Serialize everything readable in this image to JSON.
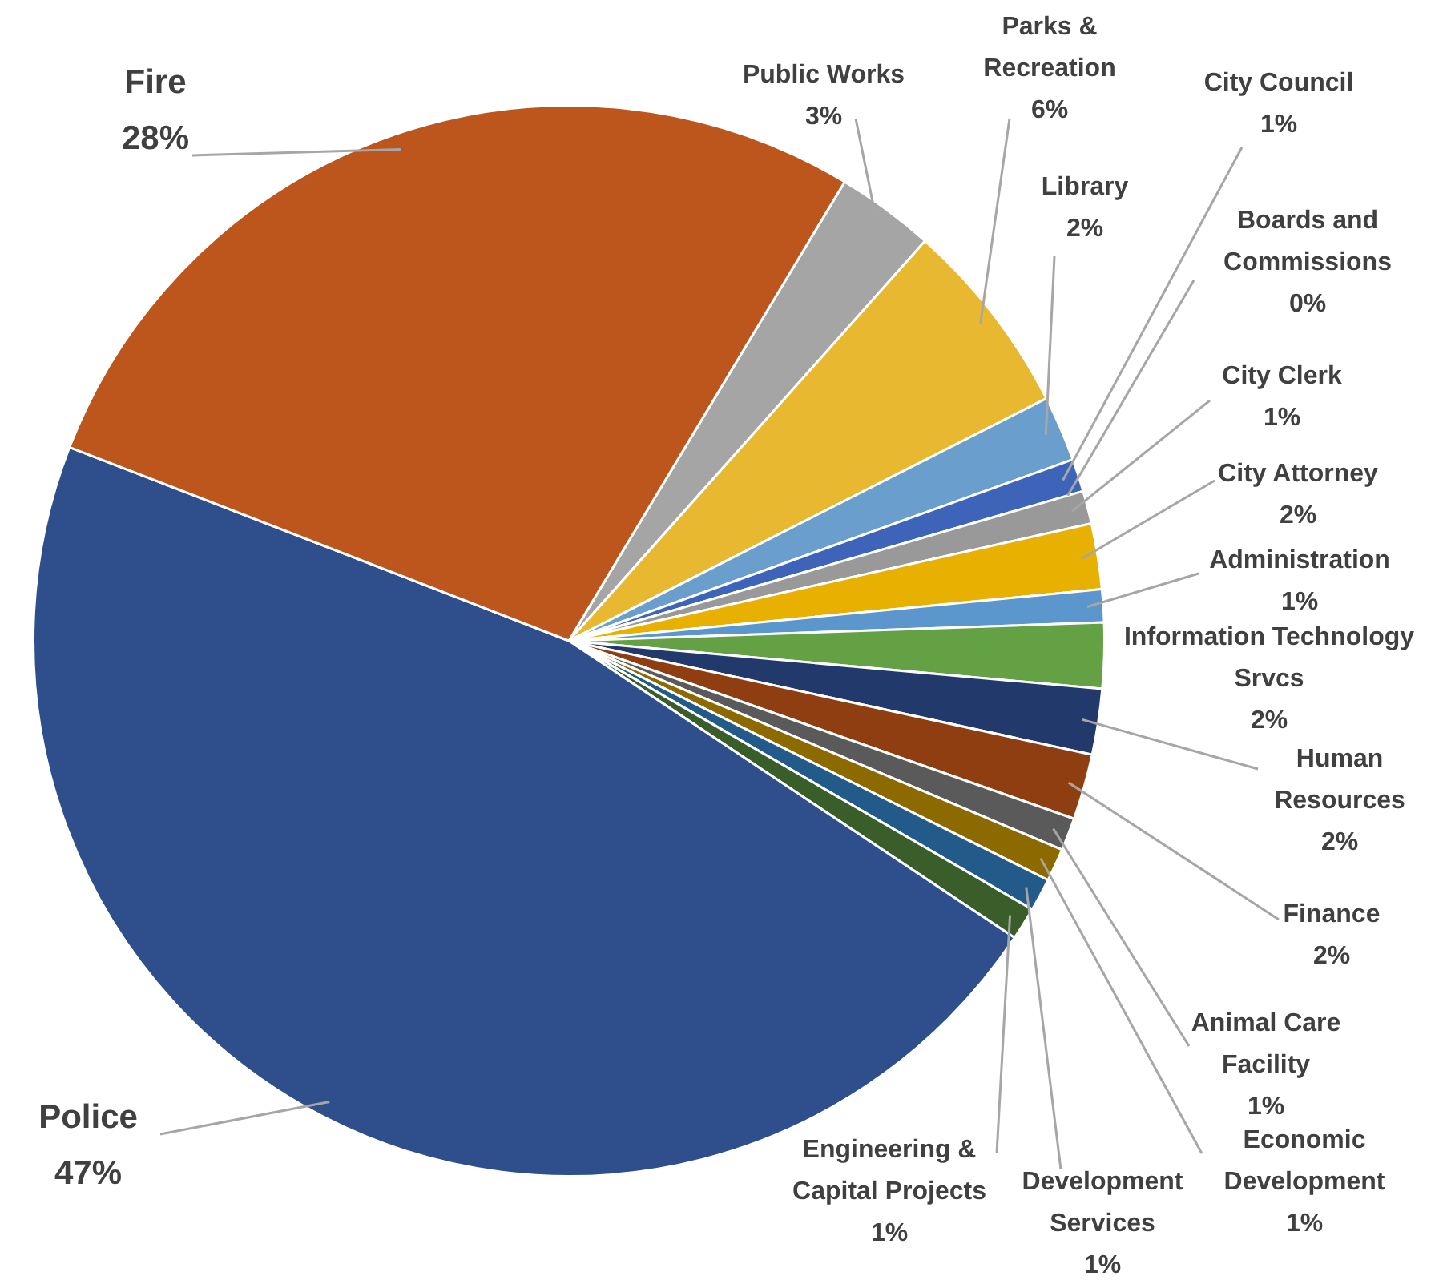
{
  "chart_data": {
    "type": "pie",
    "categories": [
      "Public Works",
      "Parks & Recreation",
      "Library",
      "City Council",
      "Boards and Commissions",
      "City Clerk",
      "City Attorney",
      "Administration",
      "Information Technology Srvcs",
      "Human Resources",
      "Finance",
      "Animal Care Facility",
      "Economic Development",
      "Development Services",
      "Engineering & Capital Projects",
      "Police",
      "Fire"
    ],
    "values": [
      3,
      6,
      2,
      1,
      0,
      1,
      2,
      1,
      2,
      2,
      2,
      1,
      1,
      1,
      1,
      47,
      28
    ],
    "value_labels": [
      "3%",
      "6%",
      "2%",
      "1%",
      "0%",
      "1%",
      "2%",
      "1%",
      "2%",
      "2%",
      "2%",
      "1%",
      "1%",
      "1%",
      "1%",
      "47%",
      "28%"
    ],
    "colors": [
      "#a5a5a5",
      "#e8b830",
      "#6a9fcd",
      "#3d64b8",
      "#b0b0b0",
      "#999999",
      "#e8b000",
      "#5b96cd",
      "#64a044",
      "#22396b",
      "#8e3e10",
      "#5a5a5a",
      "#8c6a00",
      "#225a8a",
      "#3a5e2a",
      "#2e4f8c",
      "#bd561c"
    ],
    "legend": false
  }
}
